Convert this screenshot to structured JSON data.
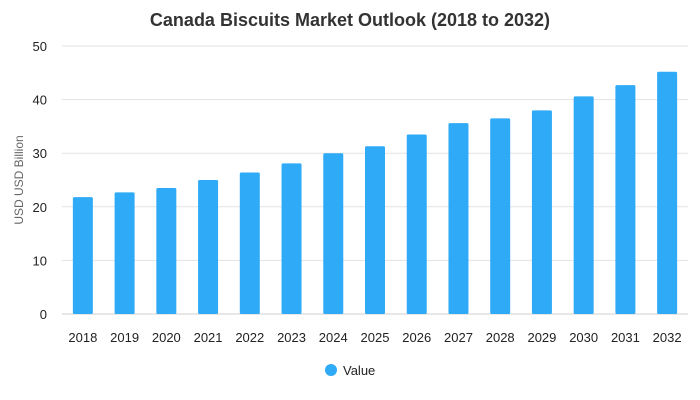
{
  "chart_data": {
    "type": "bar",
    "title": "Canada Biscuits Market Outlook (2018 to 2032)",
    "xlabel": "",
    "ylabel": "USD USD Billion",
    "categories": [
      "2018",
      "2019",
      "2020",
      "2021",
      "2022",
      "2023",
      "2024",
      "2025",
      "2026",
      "2027",
      "2028",
      "2029",
      "2030",
      "2031",
      "2032"
    ],
    "series": [
      {
        "name": "Value",
        "color": "#2eaaf7",
        "values": [
          21.8,
          22.7,
          23.5,
          25.0,
          26.4,
          28.1,
          30.0,
          31.3,
          33.5,
          35.6,
          36.5,
          38.0,
          40.6,
          42.7,
          45.2
        ]
      }
    ],
    "ylim": [
      0,
      50
    ],
    "yticks": [
      0,
      10,
      20,
      30,
      40,
      50
    ],
    "grid": true,
    "legend": "bottom-center"
  }
}
